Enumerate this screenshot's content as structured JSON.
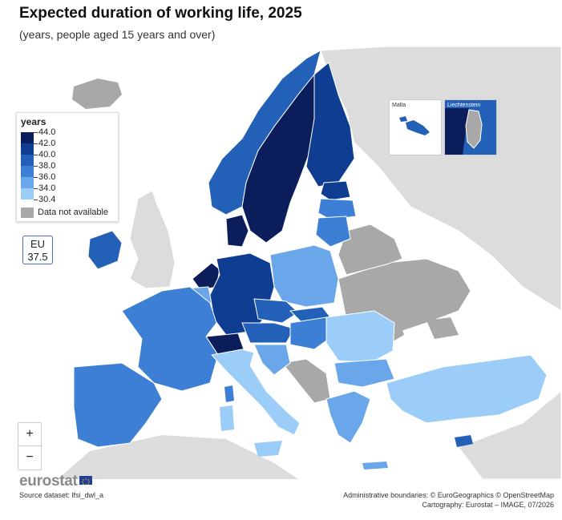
{
  "header": {
    "title": "Expected duration of working life, 2025",
    "subtitle": "(years, people aged 15 years and over)"
  },
  "legend": {
    "title": "years",
    "classes": [
      {
        "label": "44.0",
        "color": "#0b1e5b"
      },
      {
        "label": "42.0",
        "color": "#0f3d91"
      },
      {
        "label": "40.0",
        "color": "#2361b8"
      },
      {
        "label": "38.0",
        "color": "#3d7fd4"
      },
      {
        "label": "36.0",
        "color": "#6aa6ea"
      },
      {
        "label": "34.0",
        "color": "#9ccdf8"
      },
      {
        "label": "30.4",
        "color": ""
      }
    ],
    "na_label": "Data not available",
    "na_color": "#a8a8a8"
  },
  "eu_badge": {
    "line1": "EU",
    "line2": "37.5"
  },
  "insets": {
    "malta_label": "Malta",
    "liechtenstein_label": "Liechtenstein"
  },
  "zoom": {
    "in_label": "+",
    "out_label": "−"
  },
  "footer": {
    "logo": "eurostat",
    "source": "Source dataset: lfsi_dwl_a",
    "credit_line1": "Administrative boundaries: © EuroGeographics © OpenStreetMap",
    "credit_line2": "Cartography: Eurostat – IMAGE, 07/2026"
  }
}
